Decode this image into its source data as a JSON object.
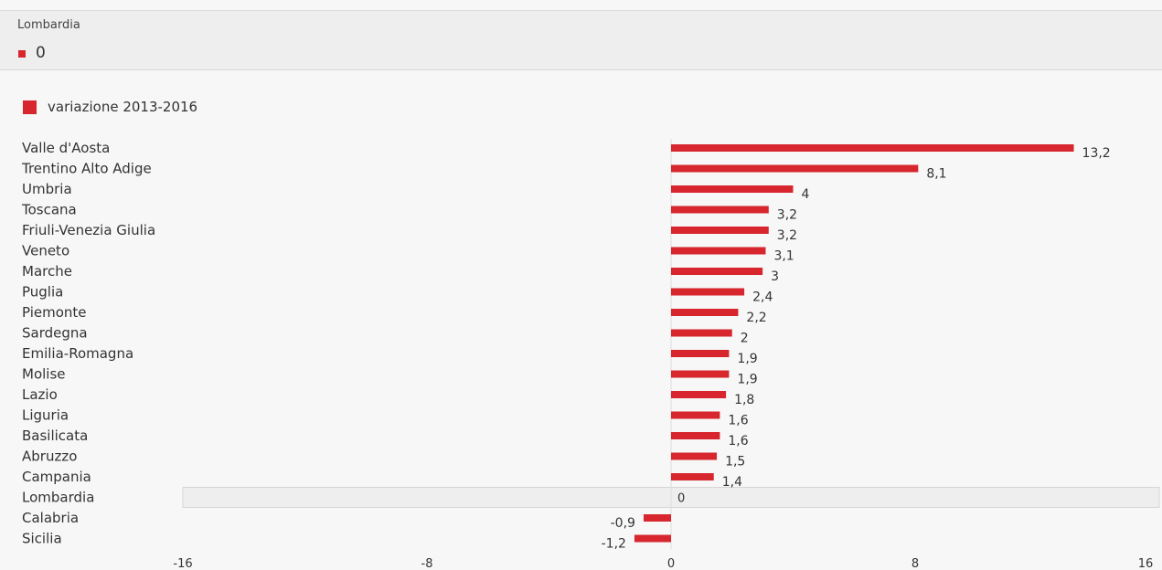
{
  "tooltip": {
    "title": "Lombardia",
    "value": "0"
  },
  "colors": {
    "bar": "#d7262d",
    "highlight_bg": "#eeeeee",
    "axis": "#dddddd",
    "text": "#333333"
  },
  "chart_data": {
    "type": "bar",
    "orientation": "horizontal",
    "categories": [
      "Valle d'Aosta",
      "Trentino Alto Adige",
      "Umbria",
      "Toscana",
      "Friuli-Venezia Giulia",
      "Veneto",
      "Marche",
      "Puglia",
      "Piemonte",
      "Sardegna",
      "Emilia-Romagna",
      "Molise",
      "Lazio",
      "Liguria",
      "Basilicata",
      "Abruzzo",
      "Campania",
      "Lombardia",
      "Calabria",
      "Sicilia"
    ],
    "series": [
      {
        "name": "variazione 2013-2016",
        "values": [
          13.2,
          8.1,
          4,
          3.2,
          3.2,
          3.1,
          3,
          2.4,
          2.2,
          2,
          1.9,
          1.9,
          1.8,
          1.6,
          1.6,
          1.5,
          1.4,
          0,
          -0.9,
          -1.2
        ],
        "labels": [
          "13,2",
          "8,1",
          "4",
          "3,2",
          "3,2",
          "3,1",
          "3",
          "2,4",
          "2,2",
          "2",
          "1,9",
          "1,9",
          "1,8",
          "1,6",
          "1,6",
          "1,5",
          "1,4",
          "0",
          "-0,9",
          "-1,2"
        ]
      }
    ],
    "xlim": [
      -16,
      16
    ],
    "xticks": [
      -16,
      -8,
      0,
      8,
      16
    ],
    "xtick_labels": [
      "-16",
      "-8",
      "0",
      "8",
      "16"
    ],
    "highlighted_category": "Lombardia",
    "legend": "top-left",
    "grid": false
  }
}
